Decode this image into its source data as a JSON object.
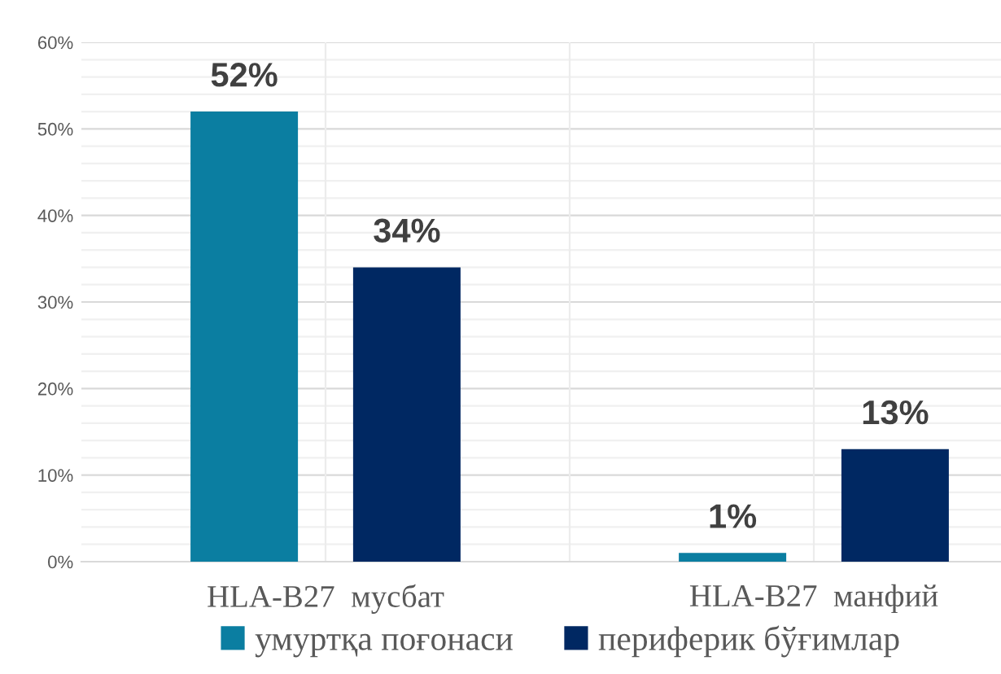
{
  "chart_data": {
    "type": "bar",
    "categories": [
      "HLA-B27  мусбат",
      "HLA-B27  манфий"
    ],
    "series": [
      {
        "name": "умуртқа поғонаси",
        "color": "#0b7ea1",
        "values": [
          52,
          1
        ],
        "value_labels": [
          "52%",
          "1%"
        ]
      },
      {
        "name": "периферик бўғимлар",
        "color": "#002862",
        "values": [
          34,
          13
        ],
        "value_labels": [
          "34%",
          "13%"
        ]
      }
    ],
    "ylim": [
      0,
      60
    ],
    "yticks": [
      {
        "value": 0,
        "label": "0%"
      },
      {
        "value": 10,
        "label": "10%"
      },
      {
        "value": 20,
        "label": "20%"
      },
      {
        "value": 30,
        "label": "30%"
      },
      {
        "value": 40,
        "label": "40%"
      },
      {
        "value": 50,
        "label": "50%"
      },
      {
        "value": 60,
        "label": "60%"
      }
    ],
    "grid": true,
    "legend": "bottom"
  }
}
